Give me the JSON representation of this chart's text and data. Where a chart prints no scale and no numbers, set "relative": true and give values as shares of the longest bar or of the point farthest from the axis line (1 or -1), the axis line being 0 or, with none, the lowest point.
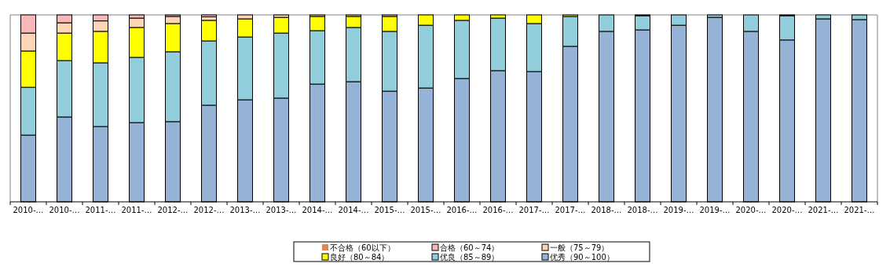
{
  "chart_data": {
    "type": "bar",
    "stacked": true,
    "relative": true,
    "legend": "bottom",
    "categories": [
      "2010-…",
      "2010-…",
      "2011-…",
      "2011-…",
      "2012-…",
      "2012-…",
      "2013-…",
      "2013-…",
      "2014-…",
      "2014-…",
      "2015-…",
      "2015-…",
      "2016-…",
      "2016-…",
      "2017-…",
      "2017-…",
      "2018-…",
      "2018-…",
      "2019-…",
      "2019-…",
      "2020-…",
      "2020-…",
      "2021-…",
      "2021-…"
    ],
    "series": [
      {
        "name": "优秀（90～100）",
        "color": "#95b3d7",
        "values": [
          0.357,
          0.454,
          0.403,
          0.424,
          0.429,
          0.517,
          0.546,
          0.555,
          0.63,
          0.643,
          0.592,
          0.609,
          0.66,
          0.702,
          0.697,
          0.832,
          0.912,
          0.92,
          0.945,
          0.987,
          0.912,
          0.866,
          0.979,
          0.975
        ]
      },
      {
        "name": "优良（85～89）",
        "color": "#92cddc",
        "values": [
          0.256,
          0.302,
          0.341,
          0.349,
          0.374,
          0.344,
          0.336,
          0.348,
          0.286,
          0.29,
          0.32,
          0.336,
          0.311,
          0.281,
          0.257,
          0.16,
          0.088,
          0.076,
          0.055,
          0.013,
          0.088,
          0.13,
          0.021,
          0.025
        ]
      },
      {
        "name": "良好（80～84）",
        "color": "#ffff00",
        "values": [
          0.194,
          0.147,
          0.168,
          0.16,
          0.151,
          0.11,
          0.097,
          0.084,
          0.076,
          0.059,
          0.08,
          0.055,
          0.029,
          0.017,
          0.046,
          0.008,
          0,
          0.004,
          0,
          0,
          0,
          0.004,
          0,
          0
        ]
      },
      {
        "name": "一般（75～79）",
        "color": "#fcd5b4",
        "values": [
          0.096,
          0.055,
          0.056,
          0.05,
          0.038,
          0.019,
          0.021,
          0.013,
          0.008,
          0.008,
          0.008,
          0,
          0,
          0,
          0,
          0,
          0,
          0,
          0,
          0,
          0,
          0,
          0,
          0
        ]
      },
      {
        "name": "合格（60～74）",
        "color": "#f9b8b8",
        "values": [
          0.097,
          0.042,
          0.032,
          0.017,
          0.008,
          0.01,
          0,
          0,
          0,
          0,
          0,
          0,
          0,
          0,
          0,
          0,
          0,
          0,
          0,
          0,
          0,
          0,
          0,
          0
        ]
      },
      {
        "name": "不合格（60以下）",
        "color": "#e0894a",
        "values": [
          0,
          0,
          0,
          0,
          0,
          0,
          0,
          0,
          0,
          0,
          0,
          0,
          0,
          0,
          0,
          0,
          0,
          0,
          0,
          0,
          0,
          0,
          0,
          0
        ]
      }
    ]
  }
}
